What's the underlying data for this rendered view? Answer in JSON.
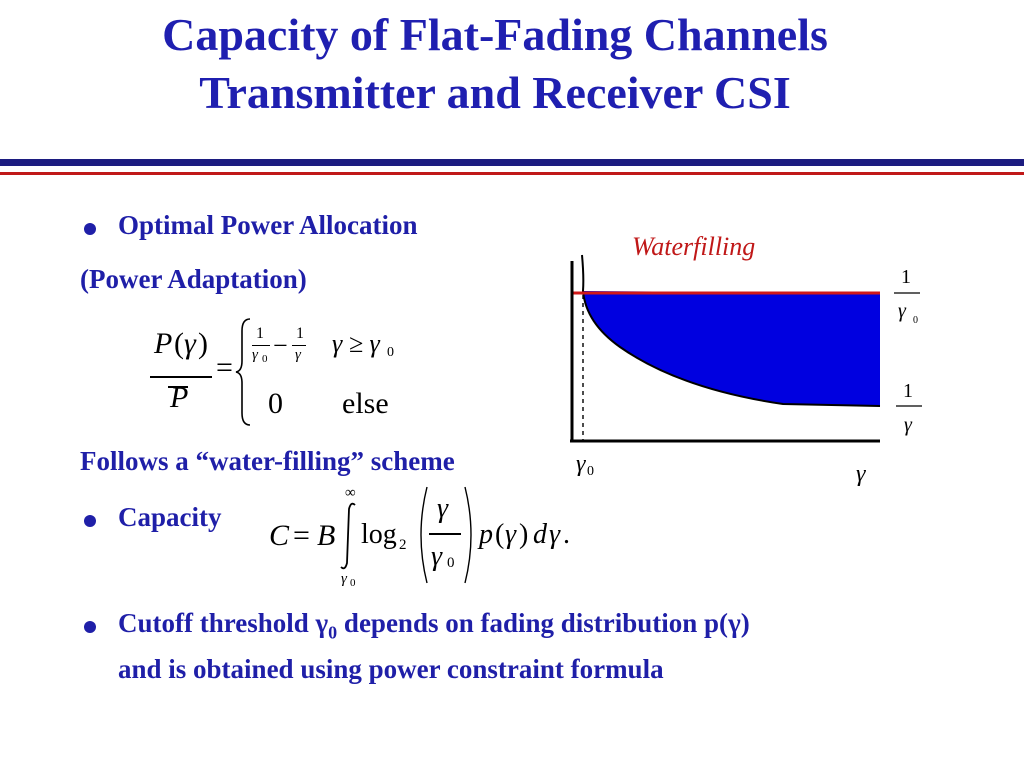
{
  "slide": {
    "title_line1": "Capacity of Flat-Fading Channels",
    "title_line2": "Transmitter and Receiver CSI",
    "colors": {
      "title": "#1f1fb0",
      "rule_blue": "#1c1c80",
      "rule_red": "#c01818",
      "fill": "#0000e0",
      "level": "#d01818",
      "label": "#c01818"
    }
  },
  "bullets": {
    "b1": "Optimal Power Allocation",
    "b1_sub": "(Power Adaptation)",
    "follows": "Follows a “water-filling” scheme",
    "b2": "Capacity",
    "b3_line1_a": "Cutoff threshold ",
    "b3_gamma": "γ",
    "b3_sub": "0",
    "b3_line1_b": " depends on fading distribution p(",
    "b3_gamma2": "γ",
    "b3_line1_c": ")",
    "b3_line2": "and is obtained using power constraint formula"
  },
  "formula_power": {
    "P": "P",
    "lp": "(",
    "gamma": "γ",
    "rp": ")",
    "Pbar": "P",
    "eq": "=",
    "one_a": "1",
    "g0_a": "γ",
    "g0_sub_a": "0",
    "minus": "−",
    "one_b": "1",
    "g_b": "γ",
    "cond": "γ ≥ γ",
    "cond_sub": "0",
    "zero": "0",
    "else": "else"
  },
  "formula_capacity": {
    "C": "C",
    "eq": "=",
    "B": "B",
    "upper": "∞",
    "lower": "γ",
    "lower_sub": "0",
    "log": "log",
    "log_sub": "2",
    "num": "γ",
    "den": "γ",
    "den_sub": "0",
    "p": "p",
    "lp": "(",
    "g": "γ",
    "rp": ")",
    "d": "d",
    "g2": "γ",
    "dot": "."
  },
  "diagram": {
    "label": "Waterfilling",
    "level_one": "1",
    "level_gamma": "γ",
    "level_sub": "0",
    "curve_one": "1",
    "curve_gamma": "γ",
    "axis_gamma0": "γ",
    "axis_gamma0_sub": "0",
    "axis_gamma": "γ"
  }
}
